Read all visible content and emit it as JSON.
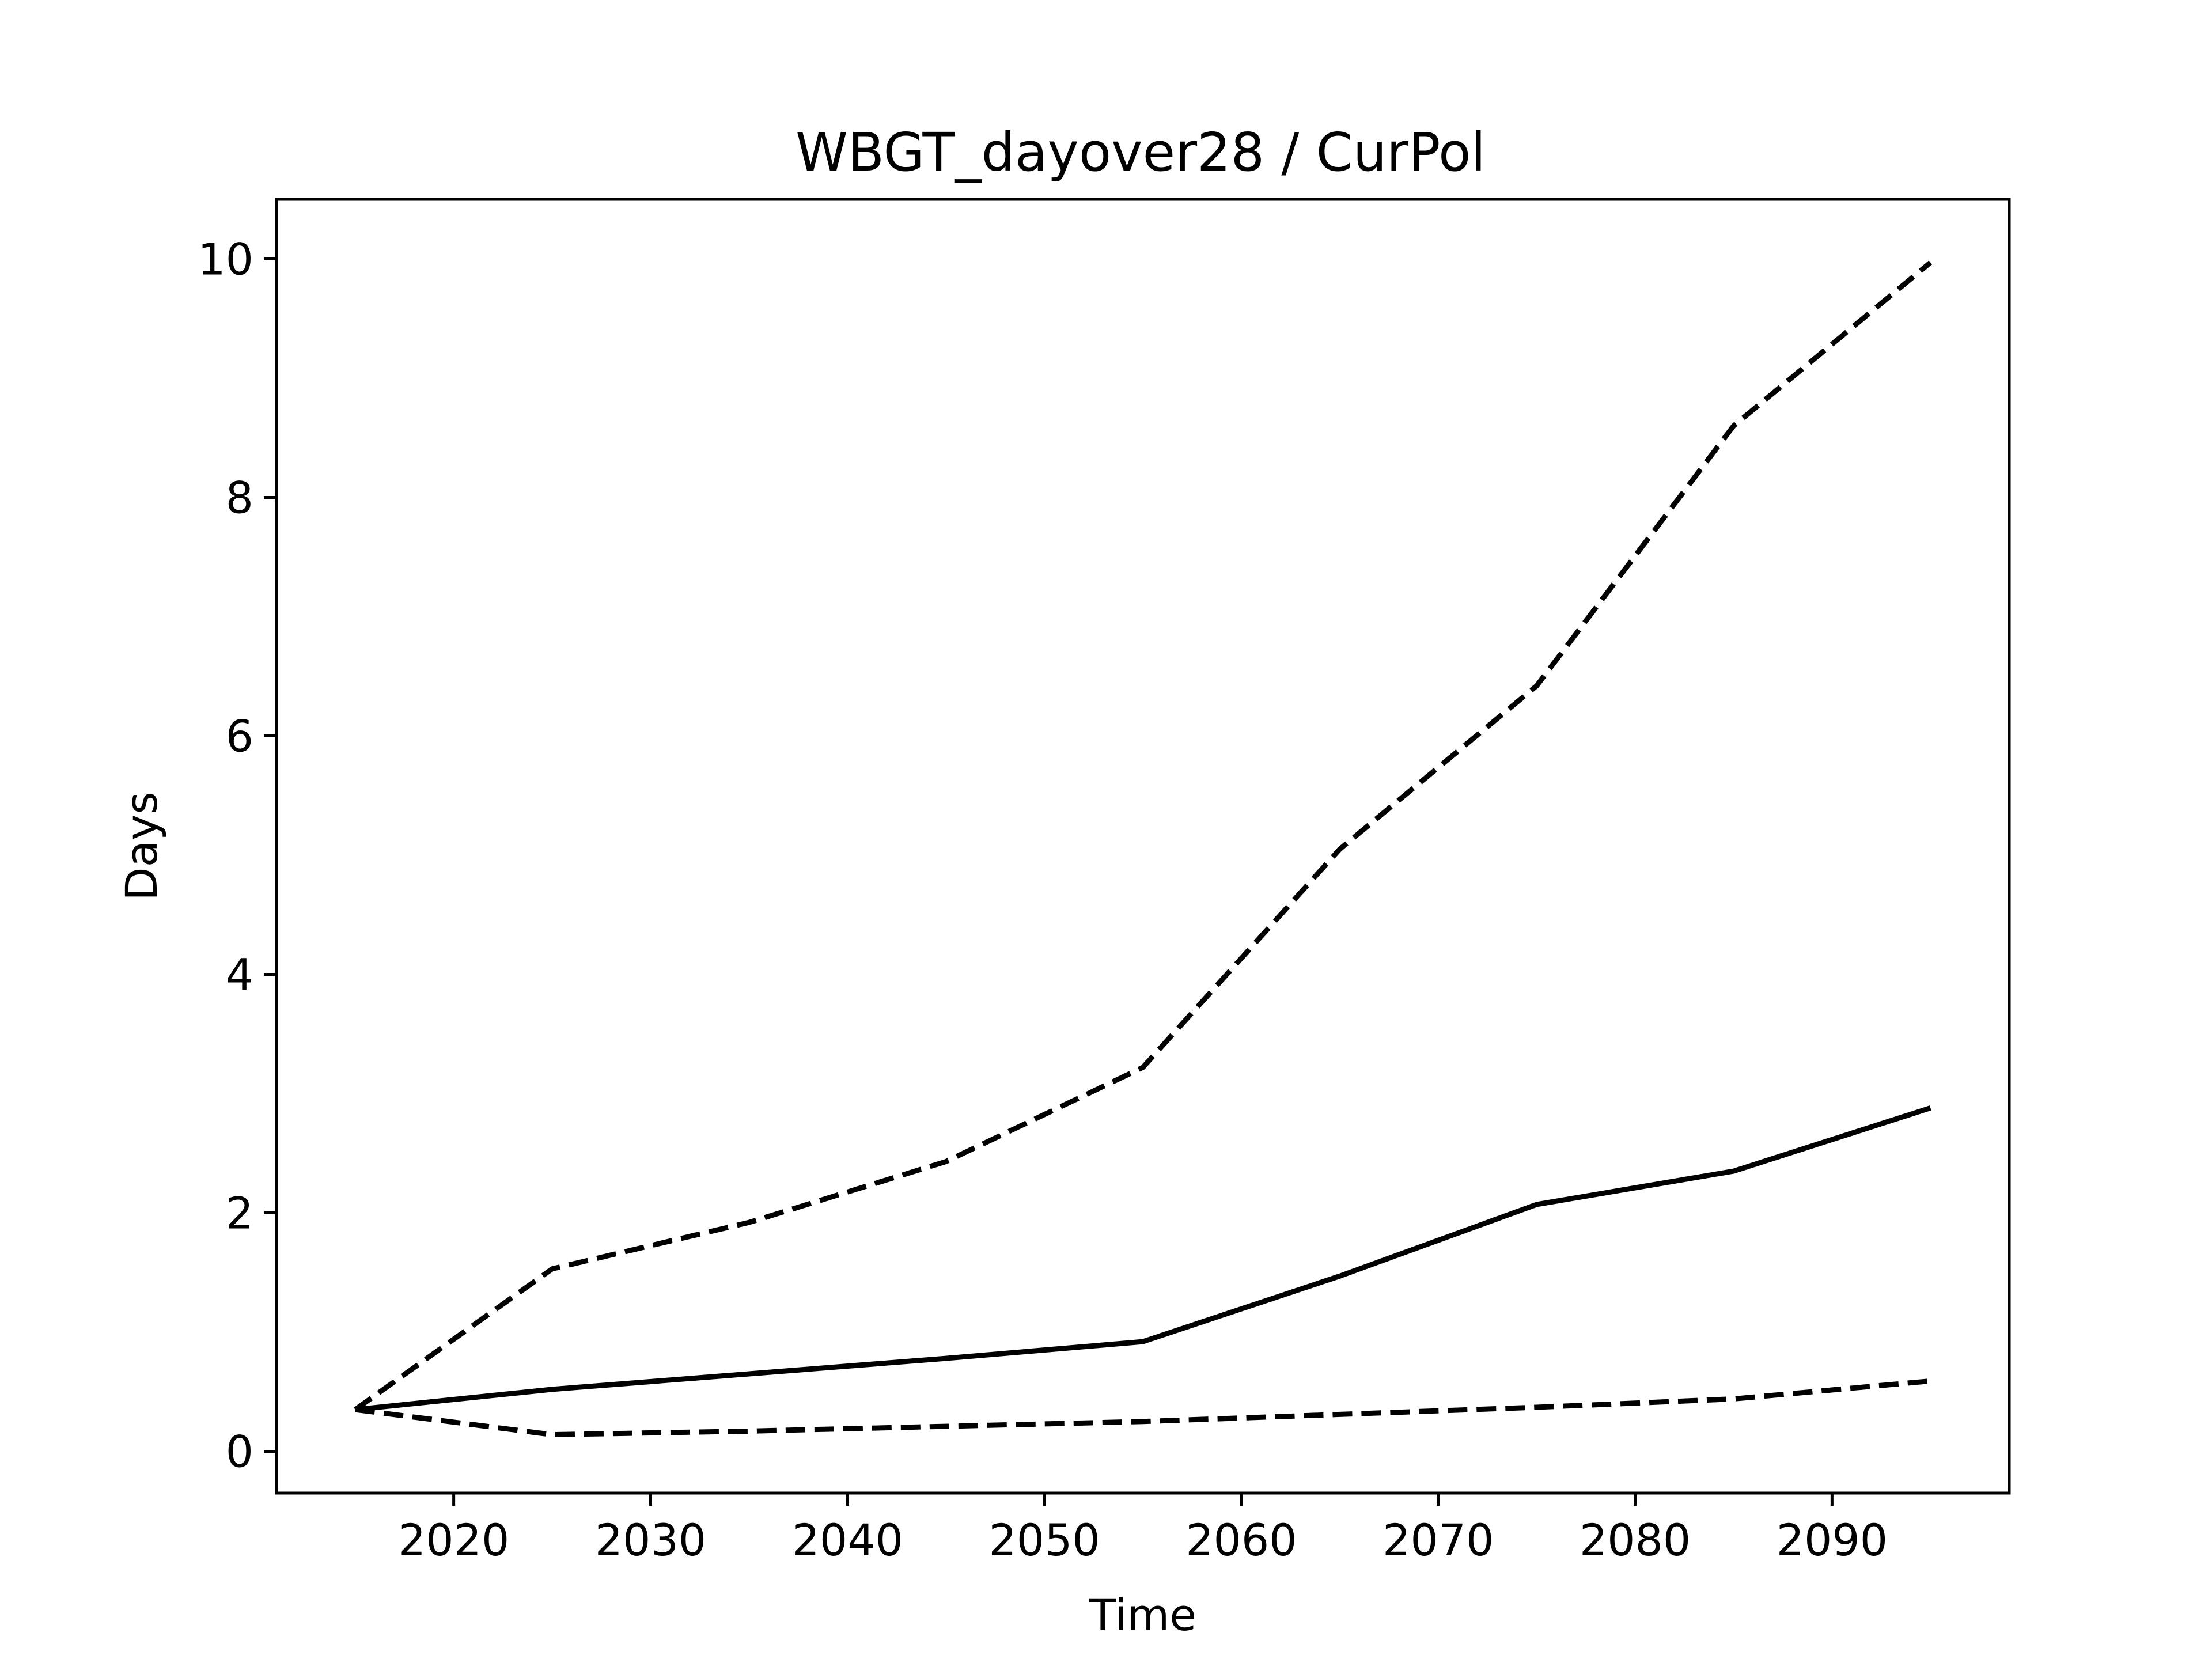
{
  "chart_data": {
    "type": "line",
    "title": "WBGT_dayover28 / CurPol",
    "xlabel": "Time",
    "ylabel": "Days",
    "xlim": [
      2011,
      2099
    ],
    "ylim": [
      -0.35,
      10.5
    ],
    "xticks": [
      2020,
      2030,
      2040,
      2050,
      2060,
      2070,
      2080,
      2090
    ],
    "yticks": [
      0,
      2,
      4,
      6,
      8,
      10
    ],
    "grid": false,
    "legend": "none",
    "x": [
      2015,
      2025,
      2035,
      2045,
      2055,
      2065,
      2075,
      2085,
      2095
    ],
    "series": [
      {
        "style": "solid",
        "color": "#000000",
        "values": [
          0.35,
          0.52,
          0.65,
          0.78,
          0.92,
          1.47,
          2.07,
          2.35,
          2.88
        ]
      },
      {
        "style": "dashed",
        "color": "#000000",
        "values": [
          0.35,
          1.53,
          1.92,
          2.43,
          3.22,
          5.05,
          6.42,
          8.6,
          9.97
        ]
      },
      {
        "style": "dashed",
        "color": "#000000",
        "values": [
          0.35,
          0.14,
          0.17,
          0.21,
          0.25,
          0.31,
          0.37,
          0.44,
          0.59
        ]
      }
    ]
  }
}
